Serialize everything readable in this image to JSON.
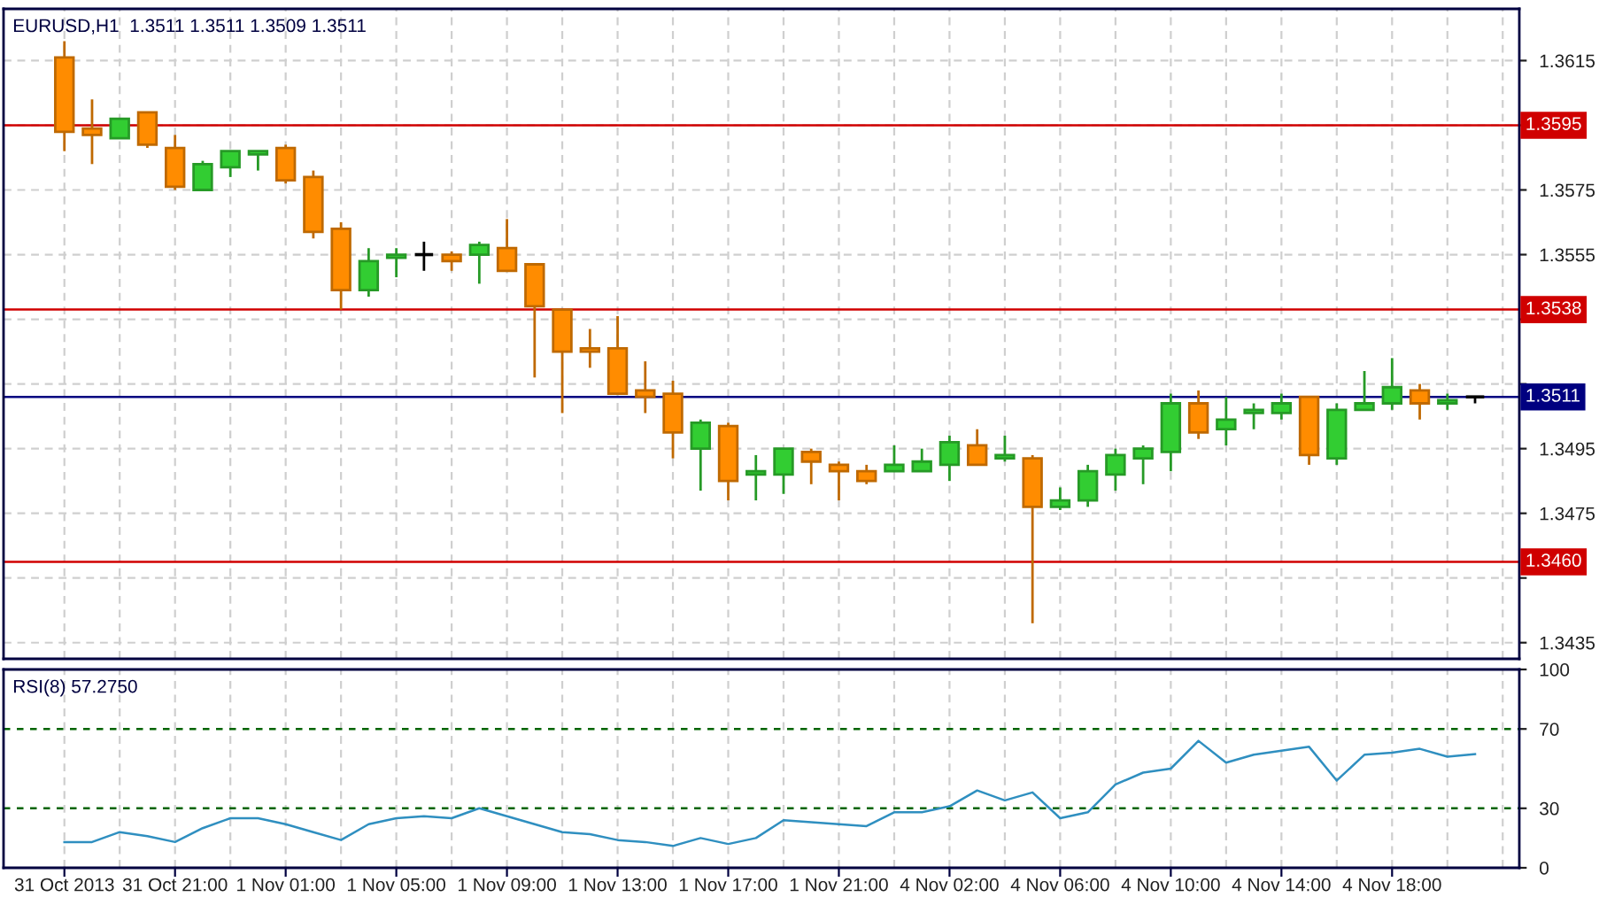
{
  "chart_data": [
    {
      "type": "candlestick",
      "title": "EURUSD,H1  1.3511 1.3511 1.3509 1.3511",
      "categories": [
        null,
        null,
        null,
        null,
        null,
        null,
        null,
        null,
        null,
        null,
        null,
        null,
        null,
        null,
        null,
        null,
        null,
        null,
        null,
        null,
        null,
        null,
        null,
        null,
        null,
        null,
        null,
        null,
        null,
        null,
        null,
        null,
        null,
        null,
        null,
        null,
        null,
        null,
        null,
        null,
        null,
        null,
        null,
        null,
        null,
        null,
        null,
        null,
        null,
        null,
        null,
        null
      ],
      "ohlc": [
        [
          1.3616,
          1.3621,
          1.3587,
          1.3593
        ],
        [
          1.3594,
          1.3603,
          1.3583,
          1.3592
        ],
        [
          1.3591,
          1.3597,
          1.3591,
          1.3597
        ],
        [
          1.3599,
          1.3599,
          1.3588,
          1.3589
        ],
        [
          1.3588,
          1.3592,
          1.3575,
          1.3576
        ],
        [
          1.3575,
          1.3584,
          1.3575,
          1.3583
        ],
        [
          1.3582,
          1.3587,
          1.3579,
          1.3587
        ],
        [
          1.3586,
          1.3587,
          1.3581,
          1.3587
        ],
        [
          1.3588,
          1.3589,
          1.3577,
          1.3578
        ],
        [
          1.3579,
          1.3581,
          1.356,
          1.3562
        ],
        [
          1.3563,
          1.3565,
          1.3538,
          1.3544
        ],
        [
          1.3544,
          1.3557,
          1.3542,
          1.3553
        ],
        [
          1.3554,
          1.3557,
          1.3548,
          1.3555
        ],
        [
          1.3555,
          1.3559,
          1.355,
          1.3555
        ],
        [
          1.3555,
          1.3556,
          1.355,
          1.3553
        ],
        [
          1.3555,
          1.3559,
          1.3546,
          1.3558
        ],
        [
          1.3557,
          1.3566,
          1.355,
          1.355
        ],
        [
          1.3552,
          1.3552,
          1.3517,
          1.3539
        ],
        [
          1.3538,
          1.3538,
          1.3506,
          1.3525
        ],
        [
          1.3526,
          1.3532,
          1.352,
          1.3525
        ],
        [
          1.3526,
          1.3536,
          1.3512,
          1.3512
        ],
        [
          1.3513,
          1.3522,
          1.3506,
          1.3511
        ],
        [
          1.3512,
          1.3516,
          1.3492,
          1.35
        ],
        [
          1.3495,
          1.3504,
          1.3482,
          1.3503
        ],
        [
          1.3502,
          1.3503,
          1.3479,
          1.3485
        ],
        [
          1.3487,
          1.3493,
          1.3479,
          1.3488
        ],
        [
          1.3487,
          1.3495,
          1.3481,
          1.3495
        ],
        [
          1.3494,
          1.3495,
          1.3484,
          1.3491
        ],
        [
          1.349,
          1.3491,
          1.3479,
          1.3488
        ],
        [
          1.3488,
          1.349,
          1.3484,
          1.3485
        ],
        [
          1.3488,
          1.3496,
          1.3488,
          1.349
        ],
        [
          1.3488,
          1.3495,
          1.3488,
          1.3491
        ],
        [
          1.349,
          1.3499,
          1.3485,
          1.3497
        ],
        [
          1.3496,
          1.3501,
          1.349,
          1.349
        ],
        [
          1.3492,
          1.3499,
          1.3491,
          1.3493
        ],
        [
          1.3492,
          1.3493,
          1.3441,
          1.3477
        ],
        [
          1.3477,
          1.3483,
          1.3476,
          1.3479
        ],
        [
          1.3479,
          1.349,
          1.3477,
          1.3488
        ],
        [
          1.3487,
          1.3495,
          1.3482,
          1.3493
        ],
        [
          1.3492,
          1.3496,
          1.3484,
          1.3495
        ],
        [
          1.3494,
          1.3512,
          1.3488,
          1.3509
        ],
        [
          1.3509,
          1.3513,
          1.3498,
          1.35
        ],
        [
          1.3501,
          1.3511,
          1.3496,
          1.3504
        ],
        [
          1.3506,
          1.3509,
          1.3501,
          1.3507
        ],
        [
          1.3506,
          1.3512,
          1.3504,
          1.3509
        ],
        [
          1.3511,
          1.3511,
          1.349,
          1.3493
        ],
        [
          1.3492,
          1.3509,
          1.349,
          1.3507
        ],
        [
          1.3507,
          1.3519,
          1.3507,
          1.3509
        ],
        [
          1.3509,
          1.3523,
          1.3507,
          1.3514
        ],
        [
          1.3513,
          1.3515,
          1.3504,
          1.3509
        ],
        [
          1.3509,
          1.3512,
          1.3507,
          1.351
        ],
        [
          1.3511,
          1.3511,
          1.3509,
          1.3511
        ]
      ],
      "colors": [
        "#ff8c00",
        "#ff8c00",
        "#32cd32",
        "#ff8c00",
        "#ff8c00",
        "#32cd32",
        "#32cd32",
        "#32cd32",
        "#ff8c00",
        "#ff8c00",
        "#ff8c00",
        "#32cd32",
        "#32cd32",
        "#000000",
        "#ff8c00",
        "#32cd32",
        "#ff8c00",
        "#ff8c00",
        "#ff8c00",
        "#ff8c00",
        "#ff8c00",
        "#ff8c00",
        "#ff8c00",
        "#32cd32",
        "#ff8c00",
        "#32cd32",
        "#32cd32",
        "#ff8c00",
        "#ff8c00",
        "#ff8c00",
        "#32cd32",
        "#32cd32",
        "#32cd32",
        "#ff8c00",
        "#32cd32",
        "#ff8c00",
        "#32cd32",
        "#32cd32",
        "#32cd32",
        "#32cd32",
        "#32cd32",
        "#ff8c00",
        "#32cd32",
        "#32cd32",
        "#32cd32",
        "#ff8c00",
        "#32cd32",
        "#32cd32",
        "#32cd32",
        "#ff8c00",
        "#32cd32",
        "#000000"
      ],
      "ylim": [
        1.343,
        1.3631
      ],
      "yticks": [
        1.3615,
        {
          "value": 1.3595,
          "label": null
        },
        1.3575,
        1.3555,
        {
          "value": 1.3535,
          "label": null
        },
        {
          "value": 1.3515,
          "label": null
        },
        1.3495,
        1.3475,
        {
          "value": 1.3455,
          "label": null
        },
        1.3435
      ],
      "tick_labels": "y",
      "grid": true,
      "ref_lines": [
        {
          "axis": "y",
          "value": 1.3595,
          "label": "1.3595",
          "color": "#d00000"
        },
        {
          "axis": "y",
          "value": 1.3538,
          "label": "1.3538",
          "color": "#d00000"
        },
        {
          "axis": "y",
          "value": 1.346,
          "label": "1.3460",
          "color": "#d00000"
        },
        {
          "axis": "y",
          "value": 1.3511,
          "label": "1.3511",
          "color": "#000080"
        }
      ]
    },
    {
      "type": "line",
      "title": "RSI(8) 57.2750",
      "categories": [
        "31 Oct 2013",
        null,
        null,
        null,
        "31 Oct 21:00",
        null,
        null,
        null,
        "1 Nov 01:00",
        null,
        null,
        null,
        "1 Nov 05:00",
        null,
        null,
        null,
        "1 Nov 09:00",
        null,
        null,
        null,
        "1 Nov 13:00",
        null,
        null,
        null,
        "1 Nov 17:00",
        null,
        null,
        null,
        "1 Nov 21:00",
        null,
        null,
        null,
        "4 Nov 02:00",
        null,
        null,
        null,
        "4 Nov 06:00",
        null,
        null,
        null,
        "4 Nov 10:00",
        null,
        null,
        null,
        "4 Nov 14:00",
        null,
        null,
        null,
        "4 Nov 18:00",
        null,
        null,
        null
      ],
      "series": [
        {
          "color": "#2f8fc0",
          "values": [
            13,
            13,
            18,
            16,
            13,
            20,
            25,
            25,
            22,
            18,
            14,
            22,
            25,
            26,
            25,
            30,
            26,
            22,
            18,
            17,
            14,
            13,
            11,
            15,
            12,
            15,
            24,
            23,
            22,
            21,
            28,
            28,
            31,
            39,
            34,
            38,
            25,
            28,
            42,
            48,
            50,
            64,
            53,
            57,
            59,
            61,
            44,
            57,
            58,
            60,
            56,
            57.275
          ]
        }
      ],
      "ylim": [
        0,
        100
      ],
      "yticks": [
        0,
        30,
        70,
        100
      ],
      "grid": "x",
      "ref_lines": [
        {
          "axis": "y",
          "value": 70,
          "color": "#006400",
          "line_style": "dashed"
        },
        {
          "axis": "y",
          "value": 30,
          "color": "#006400",
          "line_style": "dashed"
        }
      ]
    }
  ]
}
